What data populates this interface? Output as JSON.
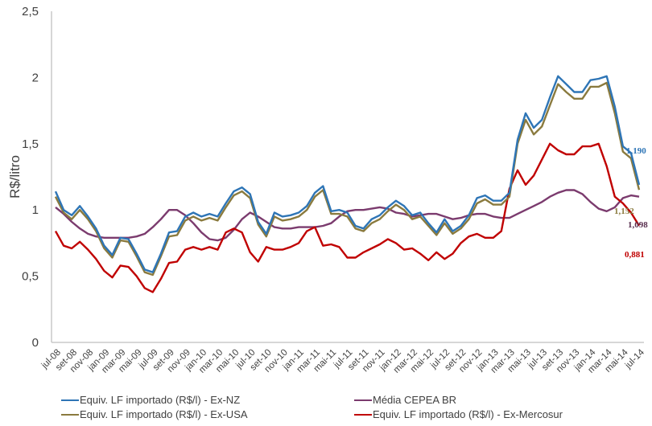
{
  "chart_data": {
    "type": "line",
    "title": "",
    "xlabel": "",
    "ylabel": "R$/litro",
    "ylim": [
      0,
      2.5
    ],
    "yticks": [
      "0",
      "0,5",
      "1",
      "1,5",
      "2",
      "2,5"
    ],
    "ytick_values": [
      0,
      0.5,
      1,
      1.5,
      2,
      2.5
    ],
    "grid": false,
    "legend_position": "bottom",
    "x": [
      "jul-08",
      "ago-08",
      "set-08",
      "out-08",
      "nov-08",
      "dez-08",
      "jan-09",
      "fev-09",
      "mar-09",
      "abr-09",
      "mai-09",
      "jun-09",
      "jul-09",
      "ago-09",
      "set-09",
      "out-09",
      "nov-09",
      "dez-09",
      "jan-10",
      "fev-10",
      "mar-10",
      "abr-10",
      "mai-10",
      "jun-10",
      "jul-10",
      "ago-10",
      "set-10",
      "out-10",
      "nov-10",
      "dez-10",
      "jan-11",
      "fev-11",
      "mar-11",
      "abr-11",
      "mai-11",
      "jun-11",
      "jul-11",
      "ago-11",
      "set-11",
      "out-11",
      "nov-11",
      "dez-11",
      "jan-12",
      "fev-12",
      "mar-12",
      "abr-12",
      "mai-12",
      "jun-12",
      "jul-12",
      "ago-12",
      "set-12",
      "out-12",
      "nov-12",
      "dez-12",
      "jan-13",
      "fev-13",
      "mar-13",
      "abr-13",
      "mai-13",
      "jun-13",
      "jul-13",
      "ago-13",
      "set-13",
      "out-13",
      "nov-13",
      "dez-13",
      "jan-14",
      "fev-14",
      "mar-14",
      "abr-14",
      "mai-14",
      "jun-14",
      "jul-14"
    ],
    "xtick_labels": [
      "jul-08",
      "set-08",
      "nov-08",
      "jan-09",
      "mar-09",
      "mai-09",
      "jul-09",
      "set-09",
      "nov-09",
      "jan-10",
      "mar-10",
      "mai-10",
      "jul-10",
      "set-10",
      "nov-10",
      "jan-11",
      "mar-11",
      "mai-11",
      "jul-11",
      "set-11",
      "nov-11",
      "jan-12",
      "mar-12",
      "mai-12",
      "jul-12",
      "set-12",
      "nov-12",
      "jan-13",
      "mar-13",
      "mai-13",
      "jul-13",
      "set-13",
      "nov-13",
      "jan-14",
      "mar-14",
      "mai-14",
      "jul-14"
    ],
    "series": [
      {
        "name": "Equiv. LF importado (R$/l) - Ex-NZ",
        "color": "#2e75b6",
        "end_label": "1,190",
        "values": [
          1.14,
          1.0,
          0.96,
          1.03,
          0.95,
          0.86,
          0.73,
          0.66,
          0.79,
          0.78,
          0.67,
          0.55,
          0.53,
          0.67,
          0.83,
          0.84,
          0.95,
          0.98,
          0.95,
          0.97,
          0.95,
          1.05,
          1.14,
          1.17,
          1.12,
          0.91,
          0.82,
          0.98,
          0.95,
          0.96,
          0.98,
          1.03,
          1.13,
          1.18,
          0.99,
          1.0,
          0.98,
          0.88,
          0.86,
          0.93,
          0.96,
          1.02,
          1.07,
          1.03,
          0.96,
          0.98,
          0.9,
          0.83,
          0.93,
          0.84,
          0.88,
          0.96,
          1.09,
          1.11,
          1.07,
          1.07,
          1.13,
          1.53,
          1.73,
          1.62,
          1.68,
          1.85,
          2.01,
          1.95,
          1.89,
          1.89,
          1.98,
          1.99,
          2.01,
          1.78,
          1.48,
          1.43,
          1.19
        ]
      },
      {
        "name": "Equiv. LF importado (R$/l) - Ex-USA",
        "color": "#8a7a3e",
        "end_label": "1,152",
        "values": [
          1.1,
          0.98,
          0.93,
          1.0,
          0.93,
          0.84,
          0.71,
          0.64,
          0.77,
          0.76,
          0.65,
          0.53,
          0.51,
          0.65,
          0.8,
          0.81,
          0.92,
          0.95,
          0.92,
          0.94,
          0.92,
          1.02,
          1.11,
          1.14,
          1.09,
          0.89,
          0.8,
          0.95,
          0.92,
          0.93,
          0.95,
          1.0,
          1.1,
          1.15,
          0.97,
          0.97,
          0.95,
          0.86,
          0.84,
          0.9,
          0.93,
          0.99,
          1.04,
          1.0,
          0.93,
          0.95,
          0.88,
          0.81,
          0.9,
          0.82,
          0.86,
          0.93,
          1.05,
          1.08,
          1.04,
          1.04,
          1.1,
          1.5,
          1.68,
          1.57,
          1.63,
          1.79,
          1.95,
          1.89,
          1.84,
          1.84,
          1.93,
          1.93,
          1.96,
          1.73,
          1.44,
          1.39,
          1.152
        ]
      },
      {
        "name": "Média CEPEA BR",
        "color": "#7b3b6e",
        "end_label": "1,098",
        "values": [
          1.02,
          0.97,
          0.91,
          0.86,
          0.82,
          0.8,
          0.79,
          0.79,
          0.79,
          0.79,
          0.8,
          0.82,
          0.87,
          0.93,
          1.0,
          1.0,
          0.96,
          0.9,
          0.83,
          0.78,
          0.77,
          0.79,
          0.85,
          0.93,
          0.98,
          0.95,
          0.91,
          0.87,
          0.86,
          0.86,
          0.87,
          0.87,
          0.87,
          0.88,
          0.9,
          0.95,
          0.99,
          1.0,
          1.0,
          1.01,
          1.02,
          1.01,
          0.98,
          0.97,
          0.95,
          0.96,
          0.97,
          0.97,
          0.95,
          0.93,
          0.94,
          0.96,
          0.97,
          0.97,
          0.95,
          0.94,
          0.94,
          0.97,
          1.0,
          1.03,
          1.06,
          1.1,
          1.13,
          1.15,
          1.15,
          1.12,
          1.06,
          1.01,
          0.99,
          1.02,
          1.09,
          1.11,
          1.1
        ]
      },
      {
        "name": "Equiv. LF importado (R$/l) - Ex-Mercosur",
        "color": "#c00000",
        "end_label": "0,881",
        "values": [
          0.84,
          0.73,
          0.71,
          0.76,
          0.7,
          0.63,
          0.54,
          0.49,
          0.58,
          0.57,
          0.5,
          0.41,
          0.38,
          0.48,
          0.6,
          0.61,
          0.7,
          0.72,
          0.7,
          0.72,
          0.7,
          0.83,
          0.86,
          0.83,
          0.68,
          0.61,
          0.72,
          0.7,
          0.7,
          0.72,
          0.75,
          0.84,
          0.87,
          0.73,
          0.74,
          0.72,
          0.64,
          0.64,
          0.68,
          0.71,
          0.74,
          0.78,
          0.75,
          0.7,
          0.71,
          0.67,
          0.62,
          0.68,
          0.63,
          0.67,
          0.75,
          0.8,
          0.82,
          0.79,
          0.79,
          0.84,
          1.16,
          1.3,
          1.19,
          1.26,
          1.38,
          1.5,
          1.45,
          1.42,
          1.42,
          1.48,
          1.48,
          1.5,
          1.33,
          1.1,
          1.05,
          0.98,
          0.881
        ]
      }
    ]
  },
  "legend": {
    "items": [
      {
        "label": "Equiv. LF importado (R$/l) - Ex-NZ",
        "color": "#2e75b6"
      },
      {
        "label": "Média CEPEA BR",
        "color": "#7b3b6e"
      },
      {
        "label": "Equiv. LF importado (R$/l) - Ex-USA",
        "color": "#8a7a3e"
      },
      {
        "label": "Equiv. LF importado (R$/l) - Ex-Mercosur",
        "color": "#c00000"
      }
    ]
  }
}
